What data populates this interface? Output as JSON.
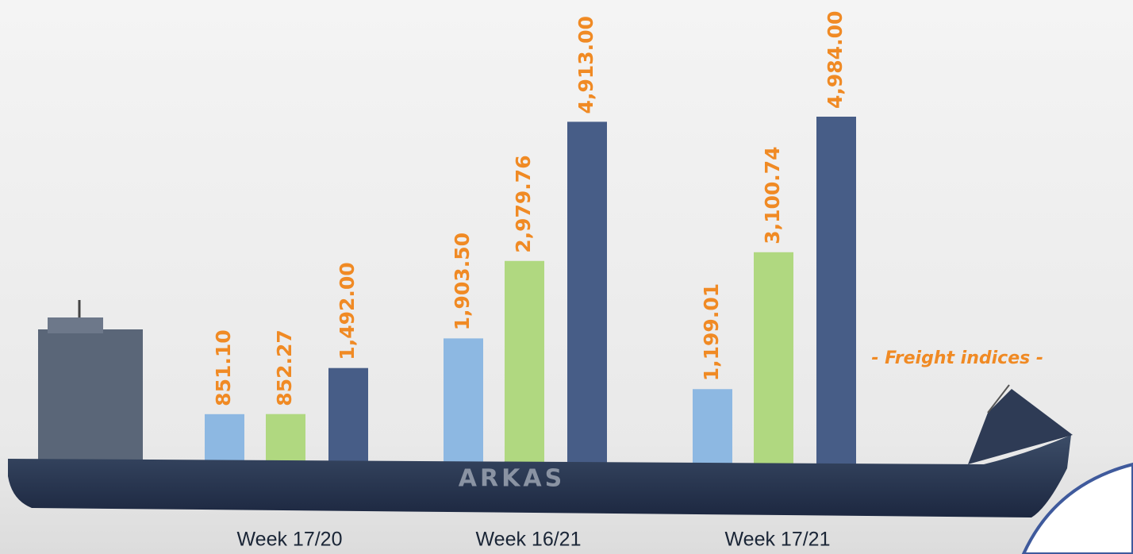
{
  "chart_data": {
    "type": "bar",
    "categories": [
      "Week 17/20",
      "Week 16/21",
      "Week 17/21"
    ],
    "series": [
      {
        "color": "#8db8e2",
        "values": [
          851.1,
          1903.5,
          1199.01
        ],
        "value_labels": [
          "851.10",
          "1,903.50",
          "1,199.01"
        ]
      },
      {
        "color": "#b0d880",
        "values": [
          852.27,
          2979.76,
          3100.74
        ],
        "value_labels": [
          "852.27",
          "2,979.76",
          "3,100.74"
        ]
      },
      {
        "color": "#475d87",
        "values": [
          1492.0,
          4913.0,
          4984.0
        ],
        "value_labels": [
          "1,492.00",
          "4,913.00",
          "4,984.00"
        ]
      }
    ],
    "label_color": "#f08a24",
    "annotations": [
      "- Freight indices -",
      "ARKAS"
    ]
  }
}
